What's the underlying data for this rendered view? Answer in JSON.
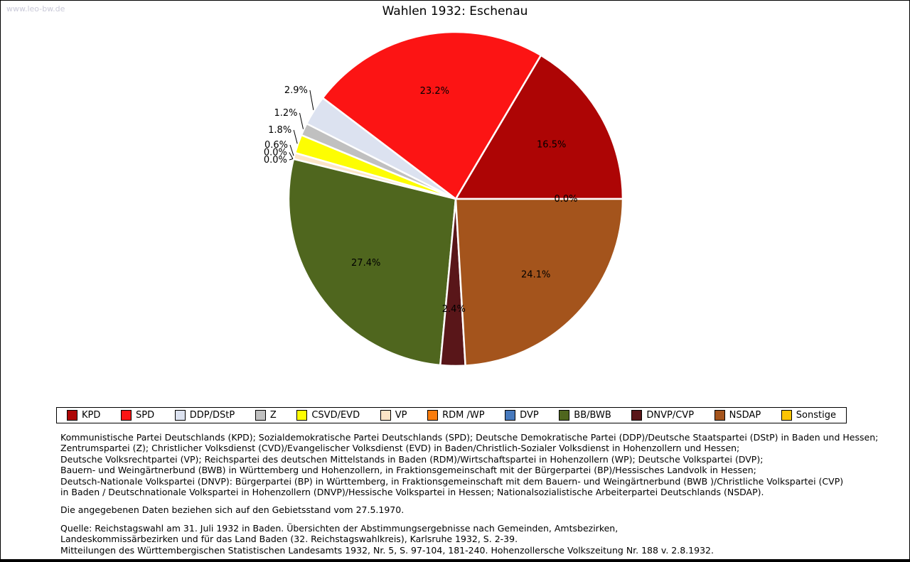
{
  "watermark": "www.leo-bw.de",
  "title": "Wahlen 1932: Eschenau",
  "chart_data": {
    "type": "pie",
    "title": "Wahlen 1932: Eschenau",
    "unit": "%",
    "start_angle_deg": 0,
    "direction": "counterclockwise",
    "label_format": "percent_one_decimal",
    "slices": [
      {
        "label": "KPD",
        "value": 16.5,
        "color": "#ad0505"
      },
      {
        "label": "SPD",
        "value": 23.2,
        "color": "#fc1414"
      },
      {
        "label": "DDP/DStP",
        "value": 2.9,
        "color": "#dce2f0"
      },
      {
        "label": "Z",
        "value": 1.2,
        "color": "#c0c0c0"
      },
      {
        "label": "CSVD/EVD",
        "value": 1.8,
        "color": "#fdfd02"
      },
      {
        "label": "VP",
        "value": 0.6,
        "color": "#fde5c6"
      },
      {
        "label": "RDM /WP",
        "value": 0.0,
        "color": "#f97c0d"
      },
      {
        "label": "DVP",
        "value": 0.0,
        "color": "#4679bd"
      },
      {
        "label": "BB/BWB",
        "value": 27.4,
        "color": "#4f661e"
      },
      {
        "label": "DNVP/CVP",
        "value": 2.4,
        "color": "#591619"
      },
      {
        "label": "NSDAP",
        "value": 24.1,
        "color": "#a4541c"
      },
      {
        "label": "Sonstige",
        "value": 0.0,
        "color": "#fcc404"
      }
    ]
  },
  "description_lines": [
    "Kommunistische Partei Deutschlands (KPD); Sozialdemokratische Partei Deutschlands (SPD); Deutsche Demokratische Partei (DDP)/Deutsche Staatspartei (DStP) in Baden und Hessen;",
    "Zentrumspartei (Z); Christlicher Volksdienst (CVD)/Evangelischer Volksdienst (EVD) in Baden/Christlich-Sozialer Volksdienst in Hohenzollern und Hessen;",
    "Deutsche Volksrechtpartei (VP); Reichspartei des deutschen Mittelstands in Baden (RDM)/Wirtschaftspartei in Hohenzollern (WP); Deutsche Volkspartei (DVP);",
    "Bauern- und Weingärtnerbund (BWB) in Württemberg und Hohenzollern, in Fraktionsgemeinschaft mit der Bürgerpartei (BP)/Hessisches Landvolk in Hessen;",
    "Deutsch-Nationale Volkspartei (DNVP): Bürgerpartei (BP) in Württemberg, in Fraktionsgemeinschaft mit dem Bauern- und Weingärtnerbund (BWB )/Christliche Volkspartei (CVP)",
    "in Baden / Deutschnationale Volkspartei in Hohenzollern (DNVP)/Hessische Volkspartei in Hessen; Nationalsozialistische Arbeiterpartei Deutschlands (NSDAP)."
  ],
  "territory_note": "Die angegebenen Daten beziehen sich auf den Gebietsstand vom 27.5.1970.",
  "source_lines": [
    "Quelle: Reichstagswahl am 31. Juli 1932 in Baden. Übersichten der Abstimmungsergebnisse nach Gemeinden, Amtsbezirken,",
    "Landeskommissärbezirken und für das Land Baden (32. Reichstagswahlkreis), Karlsruhe 1932, S. 2-39.",
    "Mitteilungen des Württembergischen Statistischen Landesamts 1932, Nr. 5, S. 97-104, 181-240. Hohenzollersche Volkszeitung Nr. 188 v. 2.8.1932."
  ]
}
